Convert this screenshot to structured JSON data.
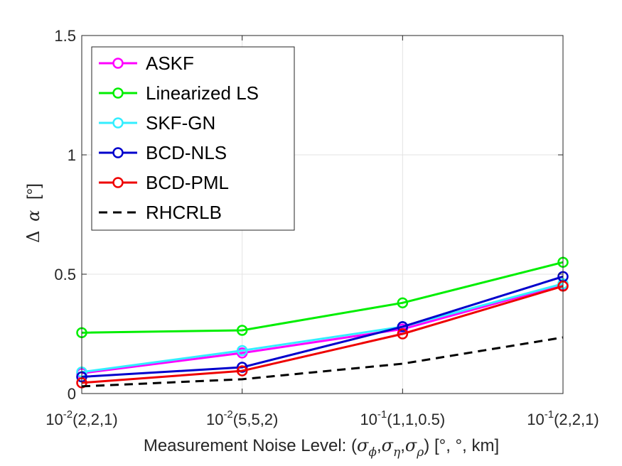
{
  "chart_data": {
    "type": "line",
    "title": "",
    "categories": [
      "10^-2(2,2,1)",
      "10^-2(5,5,2)",
      "10^-1(1,1,0.5)",
      "10^-1(2,2,1)"
    ],
    "x_tick_labels": [
      {
        "base": "10",
        "exp": "-2",
        "rest": "(2,2,1)"
      },
      {
        "base": "10",
        "exp": "-2",
        "rest": "(5,5,2)"
      },
      {
        "base": "10",
        "exp": "-1",
        "rest": "(1,1,0.5)"
      },
      {
        "base": "10",
        "exp": "-1",
        "rest": "(2,2,1)"
      }
    ],
    "xlabel": {
      "prefix": "Measurement Noise Level: (",
      "sym1": "σ",
      "sub1": "ϕ",
      "sym2": "σ",
      "sub2": "η",
      "sym3": "σ",
      "sub3": "ρ",
      "suffix": ")  [°, °, km]"
    },
    "ylabel": {
      "delta": "Δ",
      "symbol": "α",
      "unit": "[°]"
    },
    "ylim": [
      0,
      1.5
    ],
    "y_ticks": [
      0,
      0.5,
      1,
      1.5
    ],
    "y_tick_labels": [
      "0",
      "0.5",
      "1",
      "1.5"
    ],
    "grid": true,
    "legend_position": "top-left",
    "series": [
      {
        "name": "ASKF",
        "color": "#ff00ff",
        "style": "solid",
        "marker": "circle",
        "values": [
          0.085,
          0.17,
          0.27,
          0.455
        ]
      },
      {
        "name": "Linearized LS",
        "color": "#00ee00",
        "style": "solid",
        "marker": "circle",
        "values": [
          0.255,
          0.265,
          0.38,
          0.55
        ]
      },
      {
        "name": "SKF-GN",
        "color": "#33eeff",
        "style": "solid",
        "marker": "circle",
        "values": [
          0.09,
          0.18,
          0.28,
          0.46
        ]
      },
      {
        "name": "BCD-NLS",
        "color": "#0000cc",
        "style": "solid",
        "marker": "circle",
        "values": [
          0.07,
          0.11,
          0.28,
          0.49
        ]
      },
      {
        "name": "BCD-PML",
        "color": "#ee0000",
        "style": "solid",
        "marker": "circle",
        "values": [
          0.045,
          0.095,
          0.25,
          0.45
        ]
      },
      {
        "name": "RHCRLB",
        "color": "#000000",
        "style": "dashed",
        "marker": "none",
        "values": [
          0.03,
          0.06,
          0.125,
          0.235
        ]
      }
    ]
  }
}
